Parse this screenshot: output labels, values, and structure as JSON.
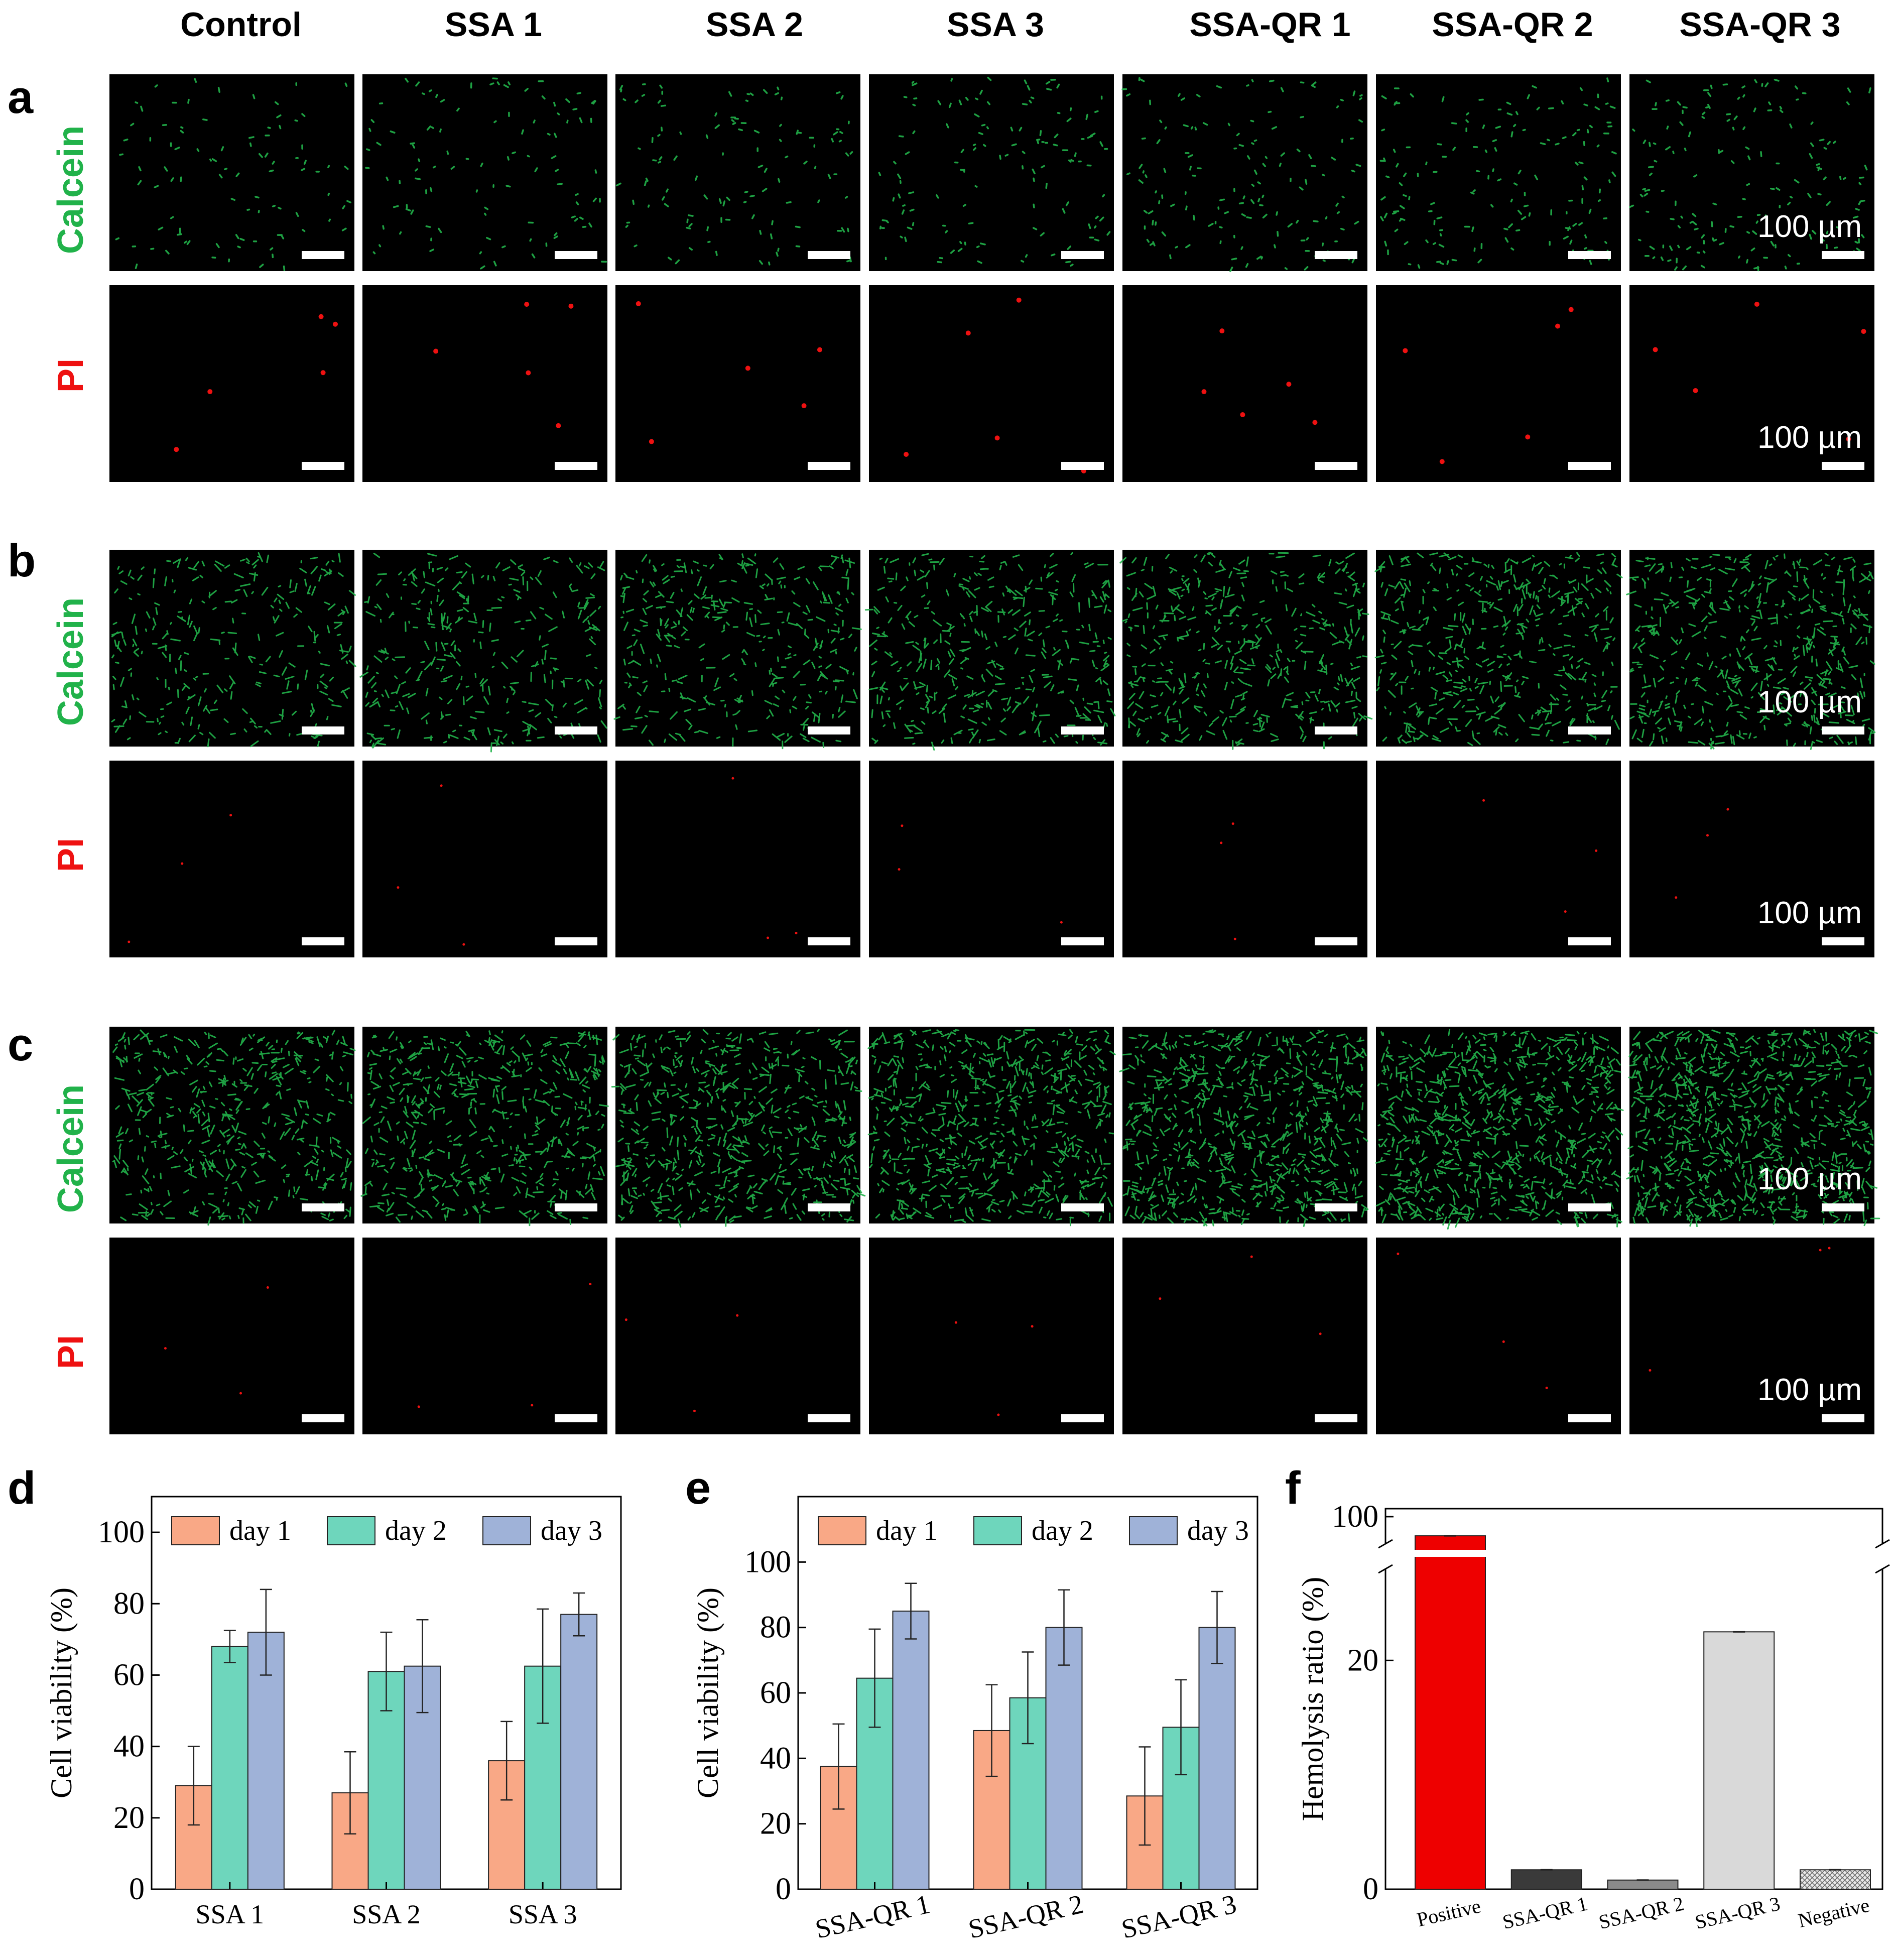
{
  "column_headers": [
    "Control",
    "SSA 1",
    "SSA 2",
    "SSA 3",
    "SSA-QR 1",
    "SSA-QR 2",
    "SSA-QR 3"
  ],
  "panel_letters": {
    "a": "a",
    "b": "b",
    "c": "c",
    "d": "d",
    "e": "e",
    "f": "f"
  },
  "row_labels": {
    "calcein": "Calcein",
    "pi": "PI"
  },
  "colors": {
    "calcein": "#21b24a",
    "pi": "#ee1111",
    "day1": "#f9a886",
    "day2": "#6ed6bc",
    "day3": "#9fb2d8",
    "positive": "#ee0000",
    "ssaqr1": "#3a3a3a",
    "ssaqr2": "#8a8a8a",
    "ssaqr3": "#d9d9d9"
  },
  "scale_bar_label": "100 µm",
  "micrograph_density": {
    "a_calcein": 1,
    "a_pi": 1,
    "b_calcein": 3,
    "b_pi": 1,
    "c_calcein": 5,
    "c_pi": 1
  },
  "chart_data": [
    {
      "panel": "d",
      "type": "bar",
      "categories": [
        "SSA 1",
        "SSA 2",
        "SSA 3"
      ],
      "series": [
        {
          "name": "day 1",
          "values": [
            29,
            27,
            36
          ],
          "errors": [
            11,
            11.5,
            11
          ]
        },
        {
          "name": "day 2",
          "values": [
            68,
            61,
            62.5
          ],
          "errors": [
            4.5,
            11,
            16
          ]
        },
        {
          "name": "day 3",
          "values": [
            72,
            62.5,
            77
          ],
          "errors": [
            12,
            13,
            6
          ]
        }
      ],
      "ylabel": "Cell viability (%)",
      "ylim": [
        0,
        110
      ],
      "yticks": [
        0,
        20,
        40,
        60,
        80,
        100
      ],
      "legend": "top"
    },
    {
      "panel": "e",
      "type": "bar",
      "categories": [
        "SSA-QR 1",
        "SSA-QR 2",
        "SSA-QR 3"
      ],
      "series": [
        {
          "name": "day 1",
          "values": [
            37.5,
            48.5,
            28.5
          ],
          "errors": [
            13,
            14,
            15
          ]
        },
        {
          "name": "day 2",
          "values": [
            64.5,
            58.5,
            49.5
          ],
          "errors": [
            15,
            14,
            14.5
          ]
        },
        {
          "name": "day 3",
          "values": [
            85,
            80,
            80
          ],
          "errors": [
            8.5,
            11.5,
            11
          ]
        }
      ],
      "ylabel": "Cell viability (%)",
      "ylim": [
        0,
        120
      ],
      "yticks": [
        0,
        20,
        40,
        60,
        80,
        100
      ],
      "legend": "top"
    },
    {
      "panel": "f",
      "type": "bar",
      "categories": [
        "Positive",
        "SSA-QR 1",
        "SSA-QR 2",
        "SSA-QR 3",
        "Negative"
      ],
      "values": [
        88,
        1.7,
        0.8,
        22.5,
        1.7
      ],
      "ylabel": "Hemolysis ratio (%)",
      "yticks": [
        0,
        20,
        100
      ],
      "axis_break": true
    }
  ]
}
